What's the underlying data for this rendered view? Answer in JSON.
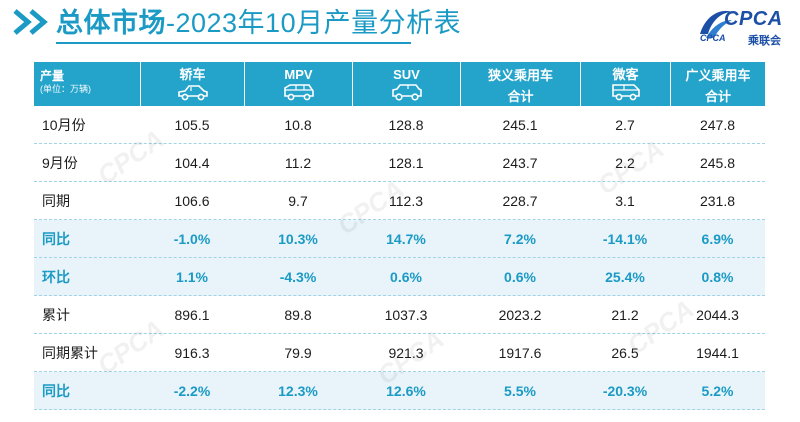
{
  "title": {
    "strong": "总体市场",
    "light": "-2023年10月产量分析表"
  },
  "logo": {
    "brand": "CPCA",
    "sub": "CPCA",
    "cn": "乘联会"
  },
  "table": {
    "header_label": "产量",
    "header_unit": "(单位：万辆)",
    "columns": [
      {
        "line1": "轿车",
        "line2": "",
        "icon": "sedan-icon"
      },
      {
        "line1": "MPV",
        "line2": "",
        "icon": "mpv-icon"
      },
      {
        "line1": "SUV",
        "line2": "",
        "icon": "suv-icon"
      },
      {
        "line1": "狭义乘用车",
        "line2": "合计",
        "icon": ""
      },
      {
        "line1": "微客",
        "line2": "",
        "icon": "minivan-icon"
      },
      {
        "line1": "广义乘用车",
        "line2": "合计",
        "icon": ""
      }
    ],
    "rows": [
      {
        "label": "10月份",
        "values": [
          "105.5",
          "10.8",
          "128.8",
          "245.1",
          "2.7",
          "247.8"
        ],
        "style": "normal"
      },
      {
        "label": "9月份",
        "values": [
          "104.4",
          "11.2",
          "128.1",
          "243.7",
          "2.2",
          "245.8"
        ],
        "style": "normal"
      },
      {
        "label": "同期",
        "values": [
          "106.6",
          "9.7",
          "112.3",
          "228.7",
          "3.1",
          "231.8"
        ],
        "style": "normal"
      },
      {
        "label": "同比",
        "values": [
          "-1.0%",
          "10.3%",
          "14.7%",
          "7.2%",
          "-14.1%",
          "6.9%"
        ],
        "style": "emph"
      },
      {
        "label": "环比",
        "values": [
          "1.1%",
          "-4.3%",
          "0.6%",
          "0.6%",
          "25.4%",
          "0.8%"
        ],
        "style": "emph"
      },
      {
        "label": "累计",
        "values": [
          "896.1",
          "89.8",
          "1037.3",
          "2023.2",
          "21.2",
          "2044.3"
        ],
        "style": "normal"
      },
      {
        "label": "同期累计",
        "values": [
          "916.3",
          "79.9",
          "921.3",
          "1917.6",
          "26.5",
          "1944.1"
        ],
        "style": "normal"
      },
      {
        "label": "同比",
        "values": [
          "-2.2%",
          "12.3%",
          "12.6%",
          "5.5%",
          "-20.3%",
          "5.2%"
        ],
        "style": "emph"
      }
    ]
  },
  "colors": {
    "accent": "#1a9ac4",
    "header_bg": "#24a4cb",
    "alt_row_bg": "#e8f4fa",
    "brand": "#1c4fa6"
  }
}
